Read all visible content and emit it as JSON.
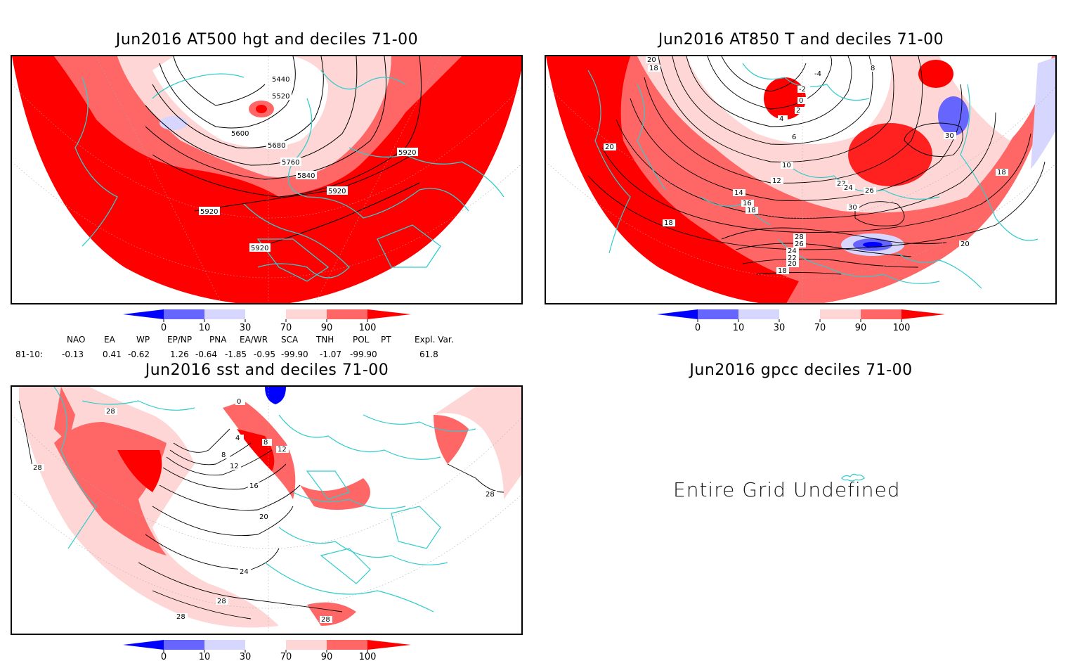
{
  "panels": [
    {
      "title": "Jun2016 AT500 hgt and deciles 71-00",
      "contour_labels": [
        "5440",
        "5520",
        "5600",
        "5680",
        "5760",
        "5840",
        "5920",
        "5920",
        "5920",
        "5920"
      ]
    },
    {
      "title": "Jun2016 AT850 T and deciles 71-00",
      "contour_labels": [
        "20",
        "18",
        "-4",
        "-2",
        "0",
        "2",
        "4",
        "6",
        "10",
        "12",
        "14",
        "16",
        "18",
        "20",
        "22",
        "24",
        "26",
        "28",
        "26",
        "24",
        "22",
        "20",
        "18",
        "30",
        "30",
        "8",
        "18",
        "20",
        "18"
      ]
    },
    {
      "title": "Jun2016 sst and deciles 71-00",
      "contour_labels": [
        "28",
        "28",
        "0",
        "4",
        "8",
        "12",
        "16",
        "20",
        "24",
        "28",
        "28",
        "28",
        "8",
        "12",
        "28"
      ]
    },
    {
      "title": "Jun2016 gpcc deciles 71-00",
      "message": "Entire Grid Undefined"
    }
  ],
  "colorbar": {
    "labels": [
      "0",
      "10",
      "30",
      "70",
      "90",
      "100"
    ],
    "colors": [
      "#0000ff",
      "#6666ff",
      "#d6d6ff",
      "#ffffff",
      "#ffd6d6",
      "#ff6666",
      "#ff0000"
    ]
  },
  "indices": {
    "headers": [
      "NAO",
      "EA",
      "WP",
      "EP/NP",
      "PNA",
      "EA/WR",
      "SCA",
      "TNH",
      "POL",
      "PT",
      "Expl. Var."
    ],
    "row_label": "81-10:",
    "values": [
      "-0.13",
      "0.41",
      "-0.62",
      "1.26",
      "-0.64",
      "-1.85",
      "-0.95",
      "-99.90",
      "-1.07",
      "-99.90",
      "61.8"
    ]
  },
  "colors": {
    "coast": "#33cccc",
    "red": "#ff0000",
    "midred": "#ff6666",
    "lightred": "#ffd6d6",
    "blue": "#0000ff",
    "lightblue": "#d6d6ff"
  }
}
